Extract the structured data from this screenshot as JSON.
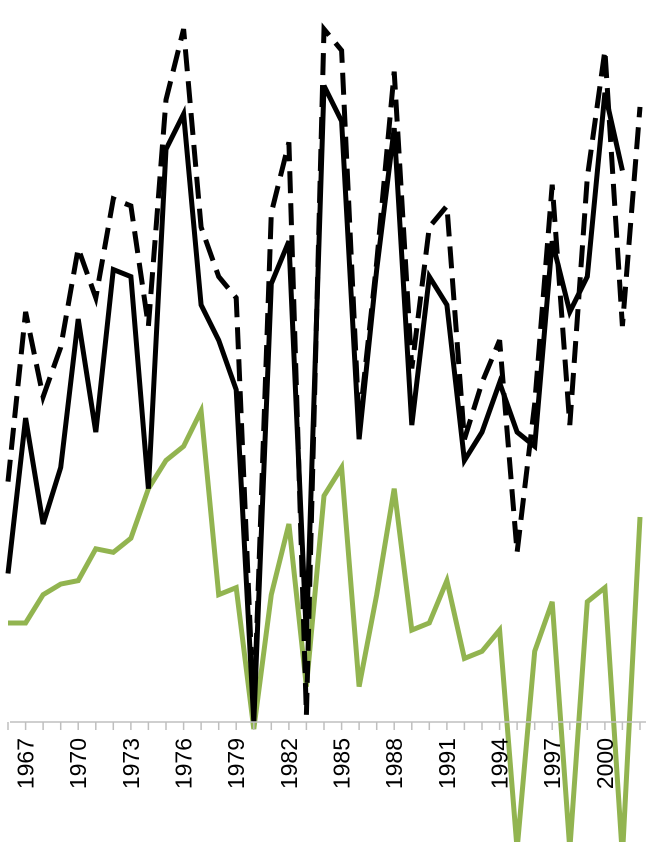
{
  "chart_data": {
    "type": "line",
    "title": "",
    "xlabel": "",
    "ylabel": "",
    "x": [
      1966,
      1967,
      1968,
      1969,
      1970,
      1971,
      1972,
      1973,
      1974,
      1975,
      1976,
      1977,
      1978,
      1979,
      1980,
      1981,
      1982,
      1983,
      1984,
      1985,
      1986,
      1987,
      1988,
      1989,
      1990,
      1991,
      1992,
      1993,
      1994,
      1995,
      1996,
      1997,
      1998,
      1999,
      2000,
      2001,
      2002
    ],
    "x_tick_labels": [
      "1967",
      "1970",
      "1973",
      "1976",
      "1979",
      "1982",
      "1985",
      "1988",
      "1991",
      "1994",
      "1997",
      "2000"
    ],
    "x_tick_values": [
      1967,
      1970,
      1973,
      1976,
      1979,
      1982,
      1985,
      1988,
      1991,
      1994,
      1997,
      2000
    ],
    "ylim": [
      0,
      100
    ],
    "grid": false,
    "series": [
      {
        "style": "dashed",
        "color": "#000000",
        "values": [
          34,
          58,
          46,
          53,
          67,
          60,
          74,
          73,
          56,
          88,
          98,
          70,
          63,
          60,
          1,
          72,
          82,
          1,
          98,
          95,
          42,
          65,
          92,
          50,
          70,
          73,
          40,
          48,
          54,
          24,
          45,
          76,
          42,
          77,
          95,
          56,
          87
        ]
      },
      {
        "style": "solid",
        "color": "#000000",
        "values": [
          21,
          43,
          28,
          36,
          57,
          41,
          64,
          63,
          33,
          81,
          86,
          59,
          54,
          47,
          0,
          62,
          68,
          12,
          90,
          85,
          40,
          64,
          84,
          42,
          63,
          59,
          37,
          41,
          48,
          41,
          39,
          68,
          58,
          63,
          89,
          78,
          null
        ]
      },
      {
        "style": "solid",
        "color": "#92b450",
        "values": [
          14,
          14,
          18,
          19.5,
          20,
          24.5,
          24,
          26,
          33,
          37,
          39,
          44,
          18,
          19,
          -1,
          18,
          28,
          5,
          32,
          36,
          5,
          18,
          33,
          13,
          14,
          20,
          9,
          10,
          13,
          -18,
          10,
          17,
          -18,
          17,
          19,
          -19,
          29
        ]
      }
    ]
  }
}
